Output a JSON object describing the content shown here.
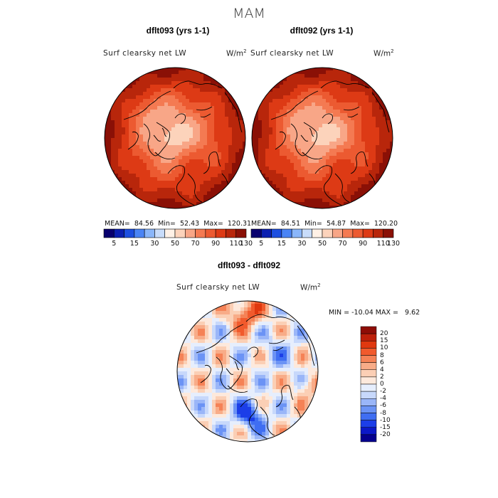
{
  "season": "MAM",
  "panels": [
    {
      "title": "dflt093 (yrs 1-1)",
      "variable": "Surf clearsky net LW",
      "units_base": "W/m",
      "units_exp": "2",
      "stats": {
        "mean_label": "MEAN=",
        "mean": "84.56",
        "min_label": "Min=",
        "min": "52.43",
        "max_label": "Max=",
        "max": "120.31"
      }
    },
    {
      "title": "dflt092 (yrs 1-1)",
      "variable": "Surf clearsky net LW",
      "units_base": "W/m",
      "units_exp": "2",
      "stats": {
        "mean_label": "MEAN=",
        "mean": "84.51",
        "min_label": "Min=",
        "min": "54.87",
        "max_label": "Max=",
        "max": "120.20"
      }
    }
  ],
  "diff": {
    "title": "dflt093 - dflt092",
    "variable": "Surf clearsky net LW",
    "units_base": "W/m",
    "units_exp": "2",
    "min_label": "MIN =",
    "min": "-10.04",
    "max_label": "MAX =",
    "max": "9.62"
  },
  "colors": {
    "abs_scale": [
      "#08006e",
      "#0b1fb0",
      "#1d4fe0",
      "#4a84f5",
      "#8ab6fa",
      "#c8dcfa",
      "#fff1e6",
      "#fcd3bb",
      "#f8a687",
      "#f47a52",
      "#ec5a31",
      "#dd3a15",
      "#b8260b",
      "#8a1006"
    ],
    "diff_scale": [
      "#06008f",
      "#0c18c8",
      "#1c3ee8",
      "#3f6ef2",
      "#6b93f5",
      "#9ab6f8",
      "#c7d8fb",
      "#e6eefd",
      "#fde9dc",
      "#fbcfb5",
      "#f8ac88",
      "#f58256",
      "#f15a2c",
      "#e0380f",
      "#bd200a",
      "#8e0d06"
    ],
    "coastline": "#000000"
  },
  "chart_data": [
    {
      "type": "heatmap",
      "projection": "polar-stereographic (north pole)",
      "title": "dflt093 (yrs 1-1)",
      "variable": "Surf clearsky net LW",
      "units": "W/m2",
      "colorbar_ticks": [
        5,
        15,
        30,
        50,
        70,
        90,
        110,
        130
      ],
      "colorbar_levels": [
        0,
        5,
        10,
        15,
        20,
        30,
        40,
        50,
        60,
        70,
        80,
        90,
        100,
        110,
        130
      ],
      "mean": 84.56,
      "min": 52.43,
      "max": 120.31
    },
    {
      "type": "heatmap",
      "projection": "polar-stereographic (north pole)",
      "title": "dflt092 (yrs 1-1)",
      "variable": "Surf clearsky net LW",
      "units": "W/m2",
      "colorbar_ticks": [
        5,
        15,
        30,
        50,
        70,
        90,
        110,
        130
      ],
      "colorbar_levels": [
        0,
        5,
        10,
        15,
        20,
        30,
        40,
        50,
        60,
        70,
        80,
        90,
        100,
        110,
        130
      ],
      "mean": 84.51,
      "min": 54.87,
      "max": 120.2
    },
    {
      "type": "heatmap",
      "projection": "polar-stereographic (north pole)",
      "title": "dflt093 - dflt092",
      "variable": "Surf clearsky net LW",
      "units": "W/m2",
      "colorbar_ticks": [
        20,
        15,
        10,
        8,
        6,
        4,
        2,
        0,
        -2,
        -4,
        -6,
        -8,
        -10,
        -15,
        -20
      ],
      "min": -10.04,
      "max": 9.62
    }
  ]
}
